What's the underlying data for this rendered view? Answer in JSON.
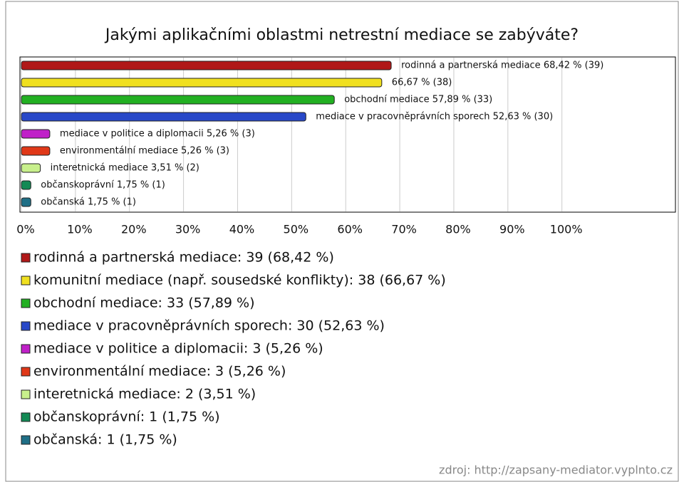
{
  "chart_data": {
    "type": "barh",
    "title": "Jakými aplikačními oblastmi netrestní mediace se zabýváte?",
    "categories": [
      "rodinná a partnerská mediace",
      "komunitní mediace (např. sousedské konflikty)",
      "obchodní mediace",
      "mediace v pracovněprávních sporech",
      "mediace v politice a diplomacii",
      "environmentální mediace",
      "interetnická mediace",
      "občanskoprávní",
      "občanská"
    ],
    "values": [
      68.42,
      66.67,
      57.89,
      52.63,
      5.26,
      5.26,
      3.51,
      1.75,
      1.75
    ],
    "value_labels": [
      "rodinná a partnerská mediace 68,42 % (39)",
      "66,67 % (38)",
      "obchodní mediace 57,89 % (33)",
      "mediace v pracovněprávních sporech 52,63 % (30)",
      "mediace v politice a diplomacii 5,26 % (3)",
      "environmentální mediace 5,26 % (3)",
      "interetnická mediace 3,51 % (2)",
      "občanskoprávní 1,75 % (1)",
      "občanská 1,75 % (1)"
    ],
    "legend_labels": [
      "rodinná a partnerská mediace: 39 (68,42 %)",
      "komunitní mediace (např. sousedské konflikty): 38 (66,67 %)",
      "obchodní mediace: 33 (57,89 %)",
      "mediace v pracovněprávních sporech: 30 (52,63 %)",
      "mediace v politice a diplomacii: 3 (5,26 %)",
      "environmentální mediace: 3 (5,26 %)",
      "interetnická mediace: 2 (3,51 %)",
      "občanskoprávní: 1 (1,75 %)",
      "občanská: 1 (1,75 %)"
    ],
    "colors": [
      "#b01818",
      "#f0e020",
      "#22b022",
      "#2848c8",
      "#c020c8",
      "#e03818",
      "#c8f08c",
      "#138a55",
      "#1f6f86"
    ],
    "xlim": [
      0,
      121
    ],
    "xticks": [
      {
        "value": 0,
        "label": "0%"
      },
      {
        "value": 10,
        "label": "10%"
      },
      {
        "value": 20,
        "label": "20%"
      },
      {
        "value": 30,
        "label": "30%"
      },
      {
        "value": 40,
        "label": "40%"
      },
      {
        "value": 50,
        "label": "50%"
      },
      {
        "value": 60,
        "label": "60%"
      },
      {
        "value": 70,
        "label": "70%"
      },
      {
        "value": 80,
        "label": "80%"
      },
      {
        "value": 90,
        "label": "90%"
      },
      {
        "value": 100,
        "label": "100%"
      }
    ],
    "grid": true,
    "source": "zdroj: http://zapsany-mediator.vyplnto.cz"
  }
}
